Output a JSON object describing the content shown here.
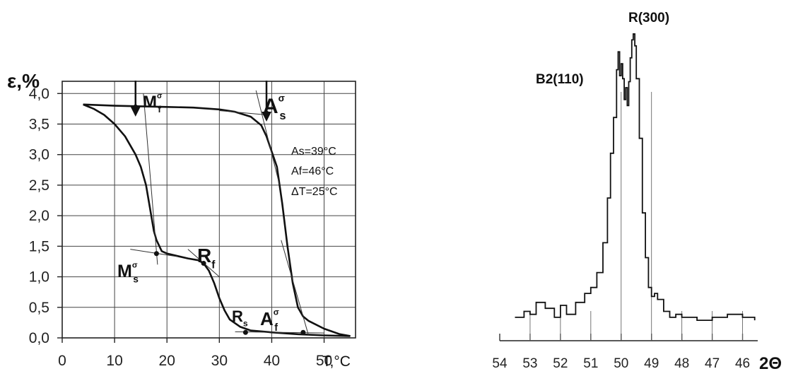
{
  "chart_data": [
    {
      "type": "line",
      "ylabel": "ε,%",
      "xlabel": "T,°C",
      "xlim": [
        0,
        56
      ],
      "ylim": [
        0,
        4.2
      ],
      "x_ticks": [
        "0",
        "10",
        "20",
        "30",
        "40",
        "50"
      ],
      "x_tick_values": [
        0,
        10,
        20,
        30,
        40,
        50
      ],
      "y_ticks": [
        "0,0",
        "0,5",
        "1,0",
        "1,5",
        "2,0",
        "2,5",
        "3,0",
        "3,5",
        "4,0"
      ],
      "y_tick_values": [
        0,
        0.5,
        1.0,
        1.5,
        2.0,
        2.5,
        3.0,
        3.5,
        4.0
      ],
      "grid": true,
      "series": [
        {
          "x": [
            4,
            6,
            8,
            10,
            12,
            14,
            15,
            16,
            17,
            17.5,
            18,
            19,
            20,
            22,
            24,
            26,
            27,
            28,
            29,
            30,
            31,
            32,
            34,
            36,
            40,
            45,
            50,
            55
          ],
          "y": [
            3.82,
            3.75,
            3.65,
            3.5,
            3.3,
            3.0,
            2.8,
            2.5,
            2.0,
            1.75,
            1.6,
            1.42,
            1.38,
            1.34,
            1.3,
            1.27,
            1.22,
            1.1,
            0.9,
            0.65,
            0.45,
            0.3,
            0.18,
            0.12,
            0.09,
            0.06,
            0.04,
            0.03
          ]
        },
        {
          "x": [
            4,
            10,
            20,
            25,
            30,
            33,
            36,
            38,
            39,
            40,
            41,
            42,
            43,
            44,
            45,
            46,
            47,
            50,
            53,
            55
          ],
          "y": [
            3.82,
            3.8,
            3.78,
            3.77,
            3.74,
            3.7,
            3.62,
            3.48,
            3.3,
            3.05,
            2.8,
            2.2,
            1.5,
            0.9,
            0.5,
            0.35,
            0.28,
            0.15,
            0.06,
            0.03
          ]
        }
      ],
      "annotations": [
        {
          "base": "M",
          "sub": "f",
          "sup": "σ"
        },
        {
          "base": "A",
          "sub": "s",
          "sup": "σ"
        },
        {
          "base": "M",
          "sub": "s",
          "sup": "σ"
        },
        {
          "base": "R",
          "sub": "f"
        },
        {
          "base": "R",
          "sub": "s"
        },
        {
          "base": "A",
          "sub": "f",
          "sup": "σ"
        }
      ],
      "marker_points": [
        {
          "x": 14,
          "y": 3.78
        },
        {
          "x": 39,
          "y": 3.68
        },
        {
          "x": 18,
          "y": 1.38
        },
        {
          "x": 27,
          "y": 1.22
        },
        {
          "x": 35,
          "y": 0.09
        },
        {
          "x": 46,
          "y": 0.09
        }
      ],
      "text_box": [
        "As=39°C",
        "Af=46°C",
        "ΔT=25°C"
      ]
    },
    {
      "type": "line",
      "xlabel": "2Θ",
      "xlim": [
        54,
        45.5
      ],
      "x_ticks": [
        "54",
        "53",
        "52",
        "51",
        "50",
        "49",
        "48",
        "47",
        "46"
      ],
      "x_tick_values": [
        54,
        53,
        52,
        51,
        50,
        49,
        48,
        47,
        46
      ],
      "peak_labels": [
        "B2(110)",
        "R(300)"
      ],
      "series": [
        {
          "x": [
            53.5,
            53.2,
            53.0,
            52.8,
            52.5,
            52.2,
            52.0,
            51.8,
            51.5,
            51.2,
            51.0,
            50.8,
            50.6,
            50.45,
            50.35,
            50.25,
            50.15,
            50.1,
            50.05,
            50.0,
            49.95,
            49.9,
            49.85,
            49.8,
            49.75,
            49.7,
            49.65,
            49.6,
            49.55,
            49.5,
            49.4,
            49.3,
            49.2,
            49.1,
            49.0,
            48.9,
            48.8,
            48.6,
            48.4,
            48.2,
            48.0,
            47.5,
            47.0,
            46.5,
            46.0,
            45.6
          ],
          "y": [
            0.05,
            0.07,
            0.06,
            0.1,
            0.08,
            0.05,
            0.09,
            0.06,
            0.1,
            0.13,
            0.15,
            0.2,
            0.3,
            0.45,
            0.6,
            0.72,
            0.88,
            0.94,
            0.86,
            0.9,
            0.85,
            0.78,
            0.82,
            0.76,
            0.84,
            0.92,
            0.98,
            1.0,
            0.96,
            0.85,
            0.65,
            0.4,
            0.25,
            0.15,
            0.12,
            0.13,
            0.11,
            0.07,
            0.05,
            0.06,
            0.05,
            0.04,
            0.05,
            0.06,
            0.05,
            0.04
          ]
        }
      ]
    }
  ]
}
